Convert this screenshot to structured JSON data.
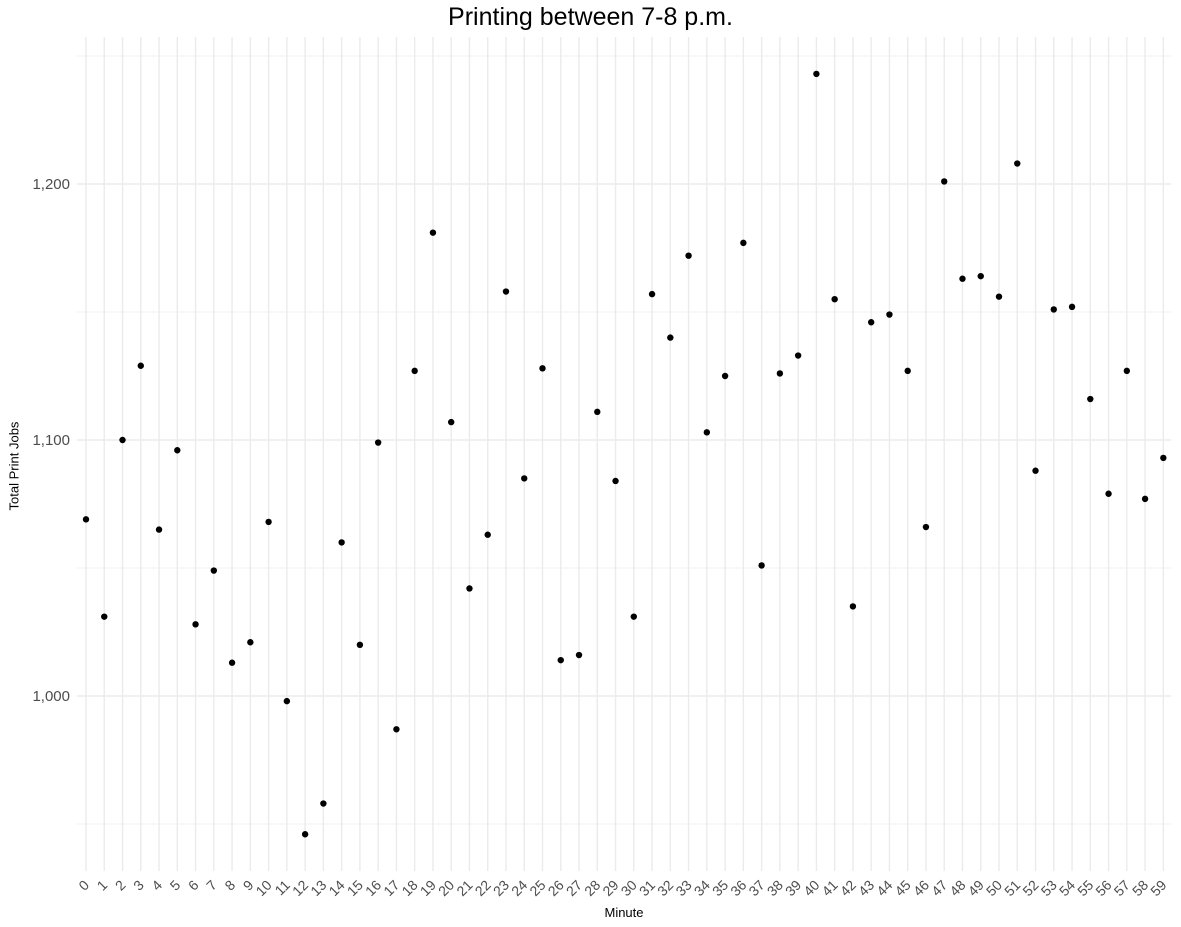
{
  "chart_data": {
    "type": "scatter",
    "title": "Printing between 7-8 p.m.",
    "xlabel": "Minute",
    "ylabel": "Total Print Jobs",
    "x": [
      0,
      1,
      2,
      3,
      4,
      5,
      6,
      7,
      8,
      9,
      10,
      11,
      12,
      13,
      14,
      15,
      16,
      17,
      18,
      19,
      20,
      21,
      22,
      23,
      24,
      25,
      26,
      27,
      28,
      29,
      30,
      31,
      32,
      33,
      34,
      35,
      36,
      37,
      38,
      39,
      40,
      41,
      42,
      43,
      44,
      45,
      46,
      47,
      48,
      49,
      50,
      51,
      52,
      53,
      54,
      55,
      56,
      57,
      58,
      59
    ],
    "y": [
      1069,
      1031,
      1100,
      1129,
      1065,
      1096,
      1028,
      1049,
      1013,
      1021,
      1068,
      998,
      946,
      958,
      1060,
      1020,
      1099,
      987,
      1127,
      1181,
      1107,
      1042,
      1063,
      1158,
      1085,
      1128,
      1014,
      1016,
      1111,
      1084,
      1031,
      1157,
      1140,
      1172,
      1103,
      1125,
      1177,
      1051,
      1126,
      1133,
      1243,
      1155,
      1035,
      1146,
      1149,
      1127,
      1066,
      1201,
      1163,
      1164,
      1156,
      1208,
      1088,
      1151,
      1152,
      1116,
      1079,
      1127,
      1077,
      1093
    ],
    "yticks": [
      1000,
      1100,
      1200
    ],
    "ytick_labels": [
      "1,000",
      "1,100",
      "1,200"
    ],
    "ylim": [
      941,
      1257
    ],
    "xlim": [
      -0.5,
      59.5
    ],
    "grid": true,
    "legend": "none",
    "point_color": "#000000",
    "grid_color": "#ebebeb"
  }
}
